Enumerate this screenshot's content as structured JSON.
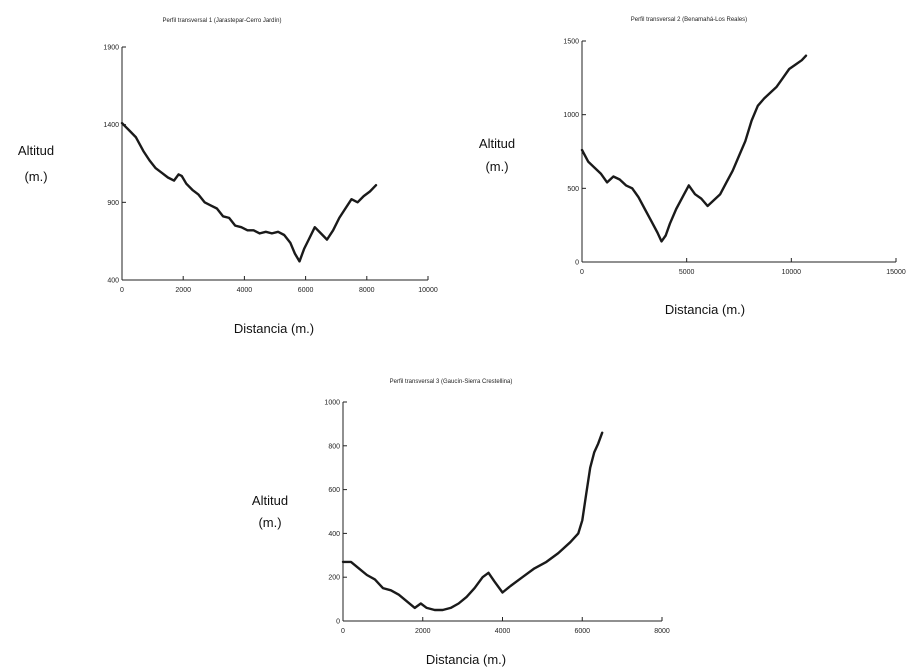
{
  "chart_data": [
    {
      "type": "line",
      "title": "Perfil transversal 1 (Jarastepar-Cerro Jardín)",
      "xlabel": "Distancia (m.)",
      "ylabel_lines": [
        "Altitud",
        "(m.)"
      ],
      "xlim": [
        0,
        10000
      ],
      "ylim": [
        400,
        1900
      ],
      "xticks": [
        0,
        2000,
        4000,
        6000,
        8000,
        10000
      ],
      "yticks": [
        400,
        900,
        1400,
        1900
      ],
      "grid": false,
      "series": [
        {
          "x": [
            0,
            250,
            450,
            700,
            900,
            1100,
            1300,
            1500,
            1700,
            1850,
            1950,
            2100,
            2300,
            2500,
            2700,
            2900,
            3100,
            3300,
            3500,
            3700,
            3900,
            4100,
            4300,
            4500,
            4700,
            4900,
            5100,
            5300,
            5500,
            5650,
            5800,
            5950,
            6100,
            6300,
            6500,
            6700,
            6900,
            7100,
            7300,
            7500,
            7700,
            7900,
            8100,
            8300
          ],
          "y": [
            1410,
            1360,
            1320,
            1230,
            1170,
            1120,
            1090,
            1060,
            1040,
            1080,
            1070,
            1020,
            980,
            950,
            900,
            880,
            860,
            810,
            800,
            750,
            740,
            720,
            720,
            700,
            710,
            700,
            710,
            690,
            640,
            570,
            520,
            600,
            660,
            740,
            700,
            660,
            720,
            800,
            860,
            920,
            900,
            940,
            970,
            1010
          ]
        }
      ]
    },
    {
      "type": "line",
      "title": "Perfil transversal 2 (Benamahá-Los Reales)",
      "xlabel": "Distancia (m.)",
      "ylabel_lines": [
        "Altitud",
        "(m.)"
      ],
      "xlim": [
        0,
        15000
      ],
      "ylim": [
        0,
        1500
      ],
      "xticks": [
        0,
        5000,
        10000,
        15000
      ],
      "yticks": [
        0,
        500,
        1000,
        1500
      ],
      "grid": false,
      "series": [
        {
          "x": [
            0,
            300,
            600,
            900,
            1200,
            1500,
            1800,
            2100,
            2400,
            2700,
            3000,
            3300,
            3600,
            3800,
            4000,
            4200,
            4500,
            4800,
            5100,
            5400,
            5700,
            6000,
            6300,
            6600,
            6900,
            7200,
            7500,
            7800,
            8100,
            8400,
            8700,
            9000,
            9300,
            9600,
            9900,
            10200,
            10500,
            10700
          ],
          "y": [
            760,
            680,
            640,
            600,
            540,
            580,
            560,
            520,
            500,
            440,
            360,
            280,
            200,
            140,
            180,
            260,
            360,
            440,
            520,
            460,
            430,
            380,
            420,
            460,
            540,
            620,
            720,
            820,
            960,
            1060,
            1110,
            1150,
            1190,
            1250,
            1310,
            1340,
            1370,
            1400
          ]
        }
      ]
    },
    {
      "type": "line",
      "title": "Perfil transversal 3 (Gaucín-Sierra Crestellina)",
      "xlabel": "Distancia (m.)",
      "ylabel_lines": [
        "Altitud",
        "(m.)"
      ],
      "xlim": [
        0,
        8000
      ],
      "ylim": [
        0,
        1000
      ],
      "xticks": [
        0,
        2000,
        4000,
        6000,
        8000
      ],
      "yticks": [
        0,
        200,
        400,
        600,
        800,
        1000
      ],
      "grid": false,
      "series": [
        {
          "x": [
            0,
            200,
            400,
            600,
            800,
            1000,
            1200,
            1400,
            1600,
            1800,
            1950,
            2100,
            2300,
            2500,
            2700,
            2900,
            3100,
            3300,
            3500,
            3650,
            3800,
            4000,
            4200,
            4500,
            4800,
            5100,
            5400,
            5700,
            5900,
            6000,
            6100,
            6200,
            6300,
            6400,
            6500
          ],
          "y": [
            270,
            270,
            240,
            210,
            190,
            150,
            140,
            120,
            90,
            60,
            80,
            60,
            50,
            50,
            60,
            80,
            110,
            150,
            200,
            220,
            180,
            130,
            160,
            200,
            240,
            270,
            310,
            360,
            400,
            460,
            580,
            700,
            770,
            810,
            860
          ]
        }
      ]
    }
  ]
}
